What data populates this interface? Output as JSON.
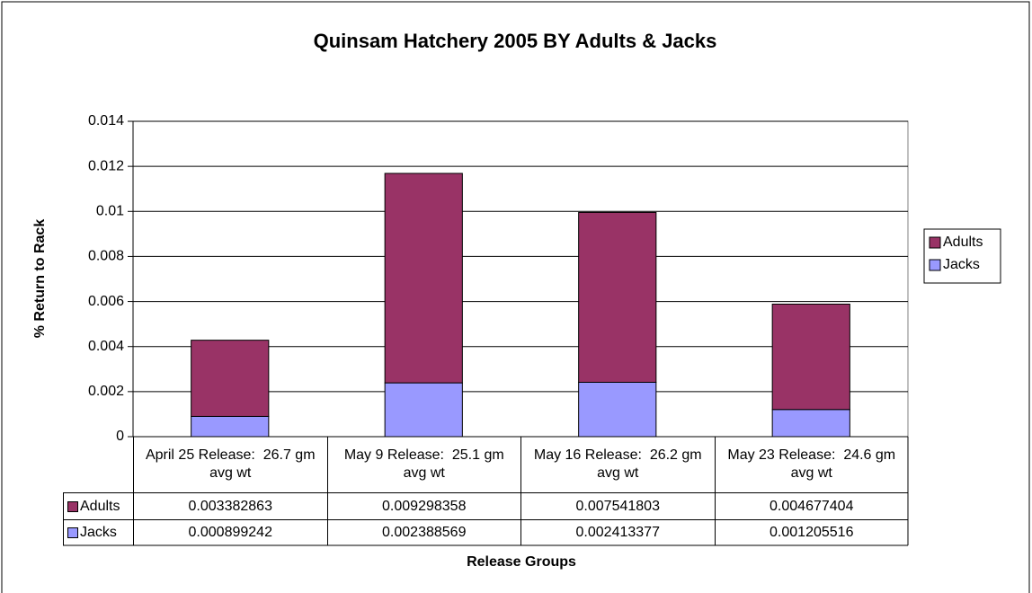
{
  "chart_data": {
    "type": "stacked_bar",
    "title": "Quinsam Hatchery 2005 BY Adults & Jacks",
    "x_label": "Release Groups",
    "y_label": "% Return  to Rack",
    "categories": [
      "April 25 Release:  26.7 gm avg wt",
      "May 9 Release:  25.1 gm avg wt",
      "May 16 Release:  26.2 gm avg wt",
      "May 23 Release:  24.6 gm avg wt"
    ],
    "series": [
      {
        "name": "Adults",
        "color": "#993366",
        "values": [
          0.003382863,
          0.009298358,
          0.007541803,
          0.004677404
        ]
      },
      {
        "name": "Jacks",
        "color": "#9999ff",
        "values": [
          0.000899242,
          0.002388569,
          0.002413377,
          0.001205516
        ]
      }
    ],
    "ylim": [
      0,
      0.014
    ],
    "yticks": [
      0,
      0.002,
      0.004,
      0.006,
      0.008,
      0.01,
      0.012,
      0.014
    ],
    "grid": true,
    "legend": "right",
    "data_table": true
  }
}
